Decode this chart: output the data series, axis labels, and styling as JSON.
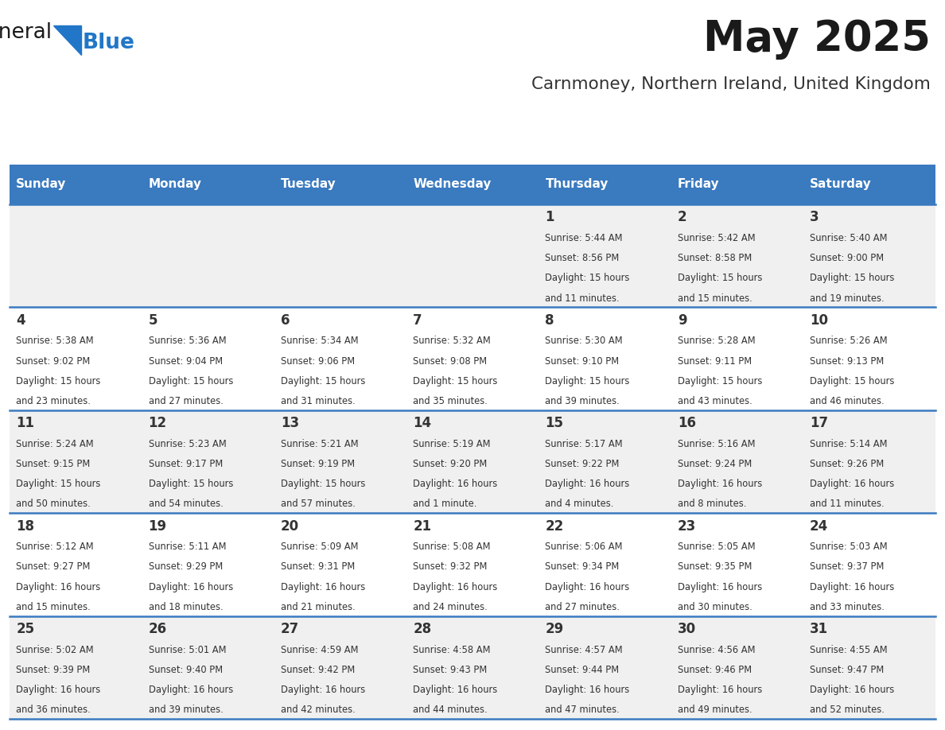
{
  "title": "May 2025",
  "subtitle": "Carnmoney, Northern Ireland, United Kingdom",
  "days_of_week": [
    "Sunday",
    "Monday",
    "Tuesday",
    "Wednesday",
    "Thursday",
    "Friday",
    "Saturday"
  ],
  "header_bg": "#3a7abf",
  "header_text": "#ffffff",
  "cell_bg_odd": "#f0f0f0",
  "cell_bg_even": "#ffffff",
  "row_line_color": "#3a7abf",
  "text_color": "#333333",
  "calendar_data": [
    [
      {
        "day": "",
        "sunrise": "",
        "sunset": "",
        "daylight_h": "",
        "daylight_m": ""
      },
      {
        "day": "",
        "sunrise": "",
        "sunset": "",
        "daylight_h": "",
        "daylight_m": ""
      },
      {
        "day": "",
        "sunrise": "",
        "sunset": "",
        "daylight_h": "",
        "daylight_m": ""
      },
      {
        "day": "",
        "sunrise": "",
        "sunset": "",
        "daylight_h": "",
        "daylight_m": ""
      },
      {
        "day": "1",
        "sunrise": "5:44 AM",
        "sunset": "8:56 PM",
        "daylight_h": "15 hours",
        "daylight_m": "and 11 minutes."
      },
      {
        "day": "2",
        "sunrise": "5:42 AM",
        "sunset": "8:58 PM",
        "daylight_h": "15 hours",
        "daylight_m": "and 15 minutes."
      },
      {
        "day": "3",
        "sunrise": "5:40 AM",
        "sunset": "9:00 PM",
        "daylight_h": "15 hours",
        "daylight_m": "and 19 minutes."
      }
    ],
    [
      {
        "day": "4",
        "sunrise": "5:38 AM",
        "sunset": "9:02 PM",
        "daylight_h": "15 hours",
        "daylight_m": "and 23 minutes."
      },
      {
        "day": "5",
        "sunrise": "5:36 AM",
        "sunset": "9:04 PM",
        "daylight_h": "15 hours",
        "daylight_m": "and 27 minutes."
      },
      {
        "day": "6",
        "sunrise": "5:34 AM",
        "sunset": "9:06 PM",
        "daylight_h": "15 hours",
        "daylight_m": "and 31 minutes."
      },
      {
        "day": "7",
        "sunrise": "5:32 AM",
        "sunset": "9:08 PM",
        "daylight_h": "15 hours",
        "daylight_m": "and 35 minutes."
      },
      {
        "day": "8",
        "sunrise": "5:30 AM",
        "sunset": "9:10 PM",
        "daylight_h": "15 hours",
        "daylight_m": "and 39 minutes."
      },
      {
        "day": "9",
        "sunrise": "5:28 AM",
        "sunset": "9:11 PM",
        "daylight_h": "15 hours",
        "daylight_m": "and 43 minutes."
      },
      {
        "day": "10",
        "sunrise": "5:26 AM",
        "sunset": "9:13 PM",
        "daylight_h": "15 hours",
        "daylight_m": "and 46 minutes."
      }
    ],
    [
      {
        "day": "11",
        "sunrise": "5:24 AM",
        "sunset": "9:15 PM",
        "daylight_h": "15 hours",
        "daylight_m": "and 50 minutes."
      },
      {
        "day": "12",
        "sunrise": "5:23 AM",
        "sunset": "9:17 PM",
        "daylight_h": "15 hours",
        "daylight_m": "and 54 minutes."
      },
      {
        "day": "13",
        "sunrise": "5:21 AM",
        "sunset": "9:19 PM",
        "daylight_h": "15 hours",
        "daylight_m": "and 57 minutes."
      },
      {
        "day": "14",
        "sunrise": "5:19 AM",
        "sunset": "9:20 PM",
        "daylight_h": "16 hours",
        "daylight_m": "and 1 minute."
      },
      {
        "day": "15",
        "sunrise": "5:17 AM",
        "sunset": "9:22 PM",
        "daylight_h": "16 hours",
        "daylight_m": "and 4 minutes."
      },
      {
        "day": "16",
        "sunrise": "5:16 AM",
        "sunset": "9:24 PM",
        "daylight_h": "16 hours",
        "daylight_m": "and 8 minutes."
      },
      {
        "day": "17",
        "sunrise": "5:14 AM",
        "sunset": "9:26 PM",
        "daylight_h": "16 hours",
        "daylight_m": "and 11 minutes."
      }
    ],
    [
      {
        "day": "18",
        "sunrise": "5:12 AM",
        "sunset": "9:27 PM",
        "daylight_h": "16 hours",
        "daylight_m": "and 15 minutes."
      },
      {
        "day": "19",
        "sunrise": "5:11 AM",
        "sunset": "9:29 PM",
        "daylight_h": "16 hours",
        "daylight_m": "and 18 minutes."
      },
      {
        "day": "20",
        "sunrise": "5:09 AM",
        "sunset": "9:31 PM",
        "daylight_h": "16 hours",
        "daylight_m": "and 21 minutes."
      },
      {
        "day": "21",
        "sunrise": "5:08 AM",
        "sunset": "9:32 PM",
        "daylight_h": "16 hours",
        "daylight_m": "and 24 minutes."
      },
      {
        "day": "22",
        "sunrise": "5:06 AM",
        "sunset": "9:34 PM",
        "daylight_h": "16 hours",
        "daylight_m": "and 27 minutes."
      },
      {
        "day": "23",
        "sunrise": "5:05 AM",
        "sunset": "9:35 PM",
        "daylight_h": "16 hours",
        "daylight_m": "and 30 minutes."
      },
      {
        "day": "24",
        "sunrise": "5:03 AM",
        "sunset": "9:37 PM",
        "daylight_h": "16 hours",
        "daylight_m": "and 33 minutes."
      }
    ],
    [
      {
        "day": "25",
        "sunrise": "5:02 AM",
        "sunset": "9:39 PM",
        "daylight_h": "16 hours",
        "daylight_m": "and 36 minutes."
      },
      {
        "day": "26",
        "sunrise": "5:01 AM",
        "sunset": "9:40 PM",
        "daylight_h": "16 hours",
        "daylight_m": "and 39 minutes."
      },
      {
        "day": "27",
        "sunrise": "4:59 AM",
        "sunset": "9:42 PM",
        "daylight_h": "16 hours",
        "daylight_m": "and 42 minutes."
      },
      {
        "day": "28",
        "sunrise": "4:58 AM",
        "sunset": "9:43 PM",
        "daylight_h": "16 hours",
        "daylight_m": "and 44 minutes."
      },
      {
        "day": "29",
        "sunrise": "4:57 AM",
        "sunset": "9:44 PM",
        "daylight_h": "16 hours",
        "daylight_m": "and 47 minutes."
      },
      {
        "day": "30",
        "sunrise": "4:56 AM",
        "sunset": "9:46 PM",
        "daylight_h": "16 hours",
        "daylight_m": "and 49 minutes."
      },
      {
        "day": "31",
        "sunrise": "4:55 AM",
        "sunset": "9:47 PM",
        "daylight_h": "16 hours",
        "daylight_m": "and 52 minutes."
      }
    ]
  ],
  "logo_color_general": "#1a1a1a",
  "logo_color_blue": "#2176c7"
}
